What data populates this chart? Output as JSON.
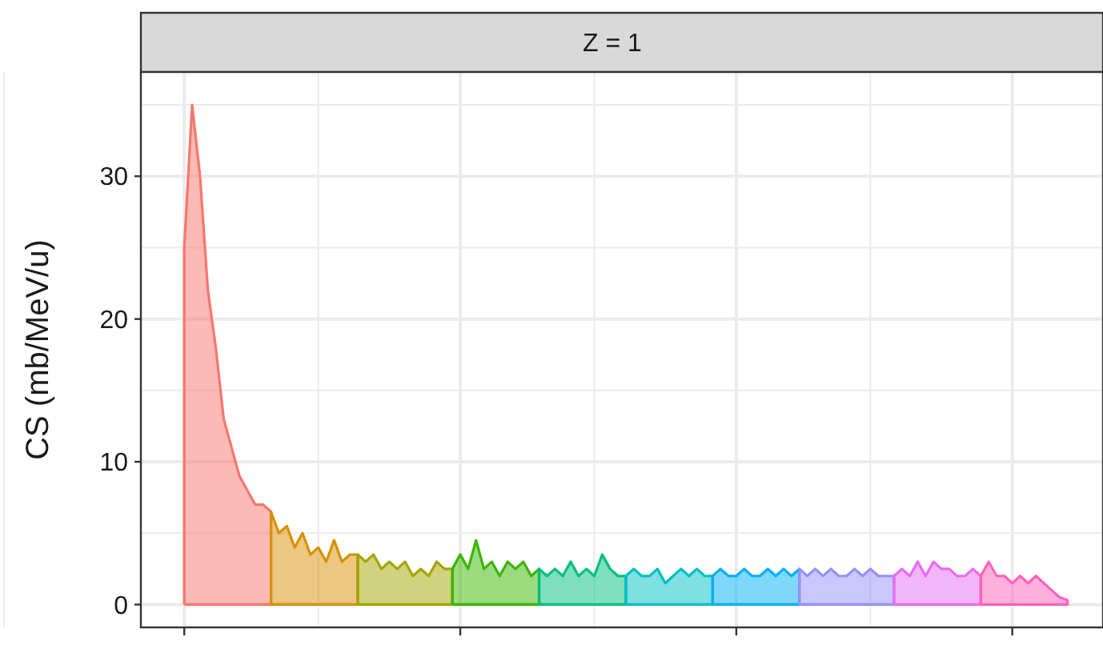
{
  "chart_data": {
    "type": "area",
    "title": "Z = 1",
    "ylabel": "CS (mb/MeV/u)",
    "categories": [
      null,
      null,
      null,
      null,
      null,
      null,
      null,
      null,
      null,
      null,
      null,
      null,
      null,
      null,
      null,
      null,
      null,
      null,
      null,
      null,
      null,
      null,
      null,
      null,
      null,
      null,
      null,
      null,
      null,
      null,
      null,
      null,
      null,
      null,
      null,
      null,
      null,
      null,
      null,
      null,
      null,
      null,
      null,
      null,
      null,
      null,
      null,
      null,
      null,
      null,
      null,
      null,
      null,
      null,
      null,
      null,
      null,
      null,
      null,
      null,
      null,
      null,
      null,
      null,
      null,
      null,
      null,
      null,
      null,
      null,
      null,
      null,
      null,
      null,
      null,
      null,
      null,
      null,
      null,
      null,
      null,
      null,
      null,
      null,
      null,
      null,
      null,
      null,
      null,
      null,
      null,
      null,
      null,
      null,
      null,
      null,
      null,
      null,
      null,
      null,
      null,
      null,
      null,
      null,
      null,
      null,
      null,
      null,
      null,
      null,
      null,
      null,
      null,
      null,
      null,
      null,
      null,
      null,
      null,
      null,
      null,
      null
    ],
    "ylim": [
      -1.6,
      37.3
    ],
    "yticks": [
      0,
      10,
      20,
      30
    ],
    "grid": true,
    "tick_labels": "y",
    "series": [
      {
        "color": "#f8766d",
        "values": [
          null,
          null,
          null,
          null,
          null,
          25,
          35,
          30,
          22,
          18,
          13,
          11,
          9,
          8,
          7,
          7,
          6.5,
          null,
          null,
          null,
          null,
          null,
          null,
          null,
          null,
          null,
          null,
          null,
          null,
          null,
          null,
          null,
          null,
          null,
          null,
          null,
          null,
          null,
          null,
          null,
          null,
          null,
          null,
          null,
          null,
          null,
          null,
          null,
          null,
          null,
          null,
          null,
          null,
          null,
          null,
          null,
          null,
          null,
          null,
          null,
          null,
          null,
          null,
          null,
          null,
          null,
          null,
          null,
          null,
          null,
          null,
          null,
          null,
          null,
          null,
          null,
          null,
          null,
          null,
          null,
          null,
          null,
          null,
          null,
          null,
          null,
          null,
          null,
          null,
          null,
          null,
          null,
          null,
          null,
          null,
          null,
          null,
          null,
          null,
          null,
          null,
          null,
          null,
          null,
          null,
          null,
          null,
          null,
          null,
          null,
          null,
          null,
          null,
          null,
          null,
          null,
          null,
          null,
          null,
          null,
          null,
          null
        ]
      },
      {
        "color": "#d89000",
        "values": [
          null,
          null,
          null,
          null,
          null,
          null,
          null,
          null,
          null,
          null,
          null,
          null,
          null,
          null,
          null,
          null,
          6.5,
          5,
          5.5,
          4,
          5,
          3.5,
          4,
          3,
          4.5,
          3,
          3.5,
          3.5,
          null,
          null,
          null,
          null,
          null,
          null,
          null,
          null,
          null,
          null,
          null,
          null,
          null,
          null,
          null,
          null,
          null,
          null,
          null,
          null,
          null,
          null,
          null,
          null,
          null,
          null,
          null,
          null,
          null,
          null,
          null,
          null,
          null,
          null,
          null,
          null,
          null,
          null,
          null,
          null,
          null,
          null,
          null,
          null,
          null,
          null,
          null,
          null,
          null,
          null,
          null,
          null,
          null,
          null,
          null,
          null,
          null,
          null,
          null,
          null,
          null,
          null,
          null,
          null,
          null,
          null,
          null,
          null,
          null,
          null,
          null,
          null,
          null,
          null,
          null,
          null,
          null,
          null,
          null,
          null,
          null,
          null,
          null,
          null,
          null,
          null,
          null,
          null,
          null,
          null,
          null,
          null,
          null,
          null
        ]
      },
      {
        "color": "#a3a500",
        "values": [
          null,
          null,
          null,
          null,
          null,
          null,
          null,
          null,
          null,
          null,
          null,
          null,
          null,
          null,
          null,
          null,
          null,
          null,
          null,
          null,
          null,
          null,
          null,
          null,
          null,
          null,
          null,
          3.5,
          3,
          3.5,
          2.5,
          3,
          2.5,
          3,
          2,
          2.5,
          2,
          3,
          2.5,
          2.5,
          null,
          null,
          null,
          null,
          null,
          null,
          null,
          null,
          null,
          null,
          null,
          null,
          null,
          null,
          null,
          null,
          null,
          null,
          null,
          null,
          null,
          null,
          null,
          null,
          null,
          null,
          null,
          null,
          null,
          null,
          null,
          null,
          null,
          null,
          null,
          null,
          null,
          null,
          null,
          null,
          null,
          null,
          null,
          null,
          null,
          null,
          null,
          null,
          null,
          null,
          null,
          null,
          null,
          null,
          null,
          null,
          null,
          null,
          null,
          null,
          null,
          null,
          null,
          null,
          null,
          null,
          null,
          null,
          null,
          null,
          null,
          null,
          null,
          null,
          null,
          null,
          null,
          null,
          null,
          null,
          null,
          null
        ]
      },
      {
        "color": "#39b600",
        "values": [
          null,
          null,
          null,
          null,
          null,
          null,
          null,
          null,
          null,
          null,
          null,
          null,
          null,
          null,
          null,
          null,
          null,
          null,
          null,
          null,
          null,
          null,
          null,
          null,
          null,
          null,
          null,
          null,
          null,
          null,
          null,
          null,
          null,
          null,
          null,
          null,
          null,
          null,
          null,
          2.5,
          3.5,
          2.5,
          4.5,
          2.5,
          3,
          2,
          3,
          2.5,
          3,
          2,
          2.5,
          null,
          null,
          null,
          null,
          null,
          null,
          null,
          null,
          null,
          null,
          null,
          null,
          null,
          null,
          null,
          null,
          null,
          null,
          null,
          null,
          null,
          null,
          null,
          null,
          null,
          null,
          null,
          null,
          null,
          null,
          null,
          null,
          null,
          null,
          null,
          null,
          null,
          null,
          null,
          null,
          null,
          null,
          null,
          null,
          null,
          null,
          null,
          null,
          null,
          null,
          null,
          null,
          null,
          null,
          null,
          null,
          null,
          null,
          null,
          null,
          null,
          null,
          null,
          null,
          null,
          null,
          null,
          null,
          null,
          null,
          null
        ]
      },
      {
        "color": "#00bf7d",
        "values": [
          null,
          null,
          null,
          null,
          null,
          null,
          null,
          null,
          null,
          null,
          null,
          null,
          null,
          null,
          null,
          null,
          null,
          null,
          null,
          null,
          null,
          null,
          null,
          null,
          null,
          null,
          null,
          null,
          null,
          null,
          null,
          null,
          null,
          null,
          null,
          null,
          null,
          null,
          null,
          null,
          null,
          null,
          null,
          null,
          null,
          null,
          null,
          null,
          null,
          null,
          2.5,
          2,
          2.5,
          2,
          3,
          2,
          2.5,
          2,
          3.5,
          2.5,
          2,
          2,
          null,
          null,
          null,
          null,
          null,
          null,
          null,
          null,
          null,
          null,
          null,
          null,
          null,
          null,
          null,
          null,
          null,
          null,
          null,
          null,
          null,
          null,
          null,
          null,
          null,
          null,
          null,
          null,
          null,
          null,
          null,
          null,
          null,
          null,
          null,
          null,
          null,
          null,
          null,
          null,
          null,
          null,
          null,
          null,
          null,
          null,
          null,
          null,
          null,
          null,
          null,
          null,
          null,
          null,
          null,
          null,
          null,
          null,
          null,
          null
        ]
      },
      {
        "color": "#00bfc4",
        "values": [
          null,
          null,
          null,
          null,
          null,
          null,
          null,
          null,
          null,
          null,
          null,
          null,
          null,
          null,
          null,
          null,
          null,
          null,
          null,
          null,
          null,
          null,
          null,
          null,
          null,
          null,
          null,
          null,
          null,
          null,
          null,
          null,
          null,
          null,
          null,
          null,
          null,
          null,
          null,
          null,
          null,
          null,
          null,
          null,
          null,
          null,
          null,
          null,
          null,
          null,
          null,
          null,
          null,
          null,
          null,
          null,
          null,
          null,
          null,
          null,
          null,
          2,
          2.5,
          2,
          2,
          2.5,
          1.5,
          2,
          2.5,
          2,
          2.5,
          2,
          2,
          null,
          null,
          null,
          null,
          null,
          null,
          null,
          null,
          null,
          null,
          null,
          null,
          null,
          null,
          null,
          null,
          null,
          null,
          null,
          null,
          null,
          null,
          null,
          null,
          null,
          null,
          null,
          null,
          null,
          null,
          null,
          null,
          null,
          null,
          null,
          null,
          null,
          null,
          null,
          null,
          null,
          null,
          null,
          null,
          null,
          null,
          null,
          null,
          null
        ]
      },
      {
        "color": "#00b0f6",
        "values": [
          null,
          null,
          null,
          null,
          null,
          null,
          null,
          null,
          null,
          null,
          null,
          null,
          null,
          null,
          null,
          null,
          null,
          null,
          null,
          null,
          null,
          null,
          null,
          null,
          null,
          null,
          null,
          null,
          null,
          null,
          null,
          null,
          null,
          null,
          null,
          null,
          null,
          null,
          null,
          null,
          null,
          null,
          null,
          null,
          null,
          null,
          null,
          null,
          null,
          null,
          null,
          null,
          null,
          null,
          null,
          null,
          null,
          null,
          null,
          null,
          null,
          null,
          null,
          null,
          null,
          null,
          null,
          null,
          null,
          null,
          null,
          null,
          2,
          2.5,
          2,
          2,
          2.5,
          2,
          2,
          2.5,
          2,
          2.5,
          2,
          2.5,
          null,
          null,
          null,
          null,
          null,
          null,
          null,
          null,
          null,
          null,
          null,
          null,
          null,
          null,
          null,
          null,
          null,
          null,
          null,
          null,
          null,
          null,
          null,
          null,
          null,
          null,
          null,
          null,
          null,
          null,
          null,
          null,
          null,
          null,
          null,
          null,
          null,
          null
        ]
      },
      {
        "color": "#9590ff",
        "values": [
          null,
          null,
          null,
          null,
          null,
          null,
          null,
          null,
          null,
          null,
          null,
          null,
          null,
          null,
          null,
          null,
          null,
          null,
          null,
          null,
          null,
          null,
          null,
          null,
          null,
          null,
          null,
          null,
          null,
          null,
          null,
          null,
          null,
          null,
          null,
          null,
          null,
          null,
          null,
          null,
          null,
          null,
          null,
          null,
          null,
          null,
          null,
          null,
          null,
          null,
          null,
          null,
          null,
          null,
          null,
          null,
          null,
          null,
          null,
          null,
          null,
          null,
          null,
          null,
          null,
          null,
          null,
          null,
          null,
          null,
          null,
          null,
          null,
          null,
          null,
          null,
          null,
          null,
          null,
          null,
          null,
          null,
          null,
          2.5,
          2,
          2.5,
          2,
          2.5,
          2,
          2,
          2.5,
          2,
          2.5,
          2,
          2,
          2,
          null,
          null,
          null,
          null,
          null,
          null,
          null,
          null,
          null,
          null,
          null,
          null,
          null,
          null,
          null,
          null,
          null,
          null,
          null,
          null,
          null,
          null,
          null,
          null,
          null,
          null
        ]
      },
      {
        "color": "#e76bf3",
        "values": [
          null,
          null,
          null,
          null,
          null,
          null,
          null,
          null,
          null,
          null,
          null,
          null,
          null,
          null,
          null,
          null,
          null,
          null,
          null,
          null,
          null,
          null,
          null,
          null,
          null,
          null,
          null,
          null,
          null,
          null,
          null,
          null,
          null,
          null,
          null,
          null,
          null,
          null,
          null,
          null,
          null,
          null,
          null,
          null,
          null,
          null,
          null,
          null,
          null,
          null,
          null,
          null,
          null,
          null,
          null,
          null,
          null,
          null,
          null,
          null,
          null,
          null,
          null,
          null,
          null,
          null,
          null,
          null,
          null,
          null,
          null,
          null,
          null,
          null,
          null,
          null,
          null,
          null,
          null,
          null,
          null,
          null,
          null,
          null,
          null,
          null,
          null,
          null,
          null,
          null,
          null,
          null,
          null,
          null,
          null,
          2,
          2.5,
          2,
          3,
          2,
          3,
          2.5,
          2.5,
          2,
          2,
          2.5,
          2,
          null,
          null,
          null,
          null,
          null,
          null,
          null,
          null,
          null,
          null,
          null,
          null,
          null,
          null,
          null
        ]
      },
      {
        "color": "#ff62bc",
        "values": [
          null,
          null,
          null,
          null,
          null,
          null,
          null,
          null,
          null,
          null,
          null,
          null,
          null,
          null,
          null,
          null,
          null,
          null,
          null,
          null,
          null,
          null,
          null,
          null,
          null,
          null,
          null,
          null,
          null,
          null,
          null,
          null,
          null,
          null,
          null,
          null,
          null,
          null,
          null,
          null,
          null,
          null,
          null,
          null,
          null,
          null,
          null,
          null,
          null,
          null,
          null,
          null,
          null,
          null,
          null,
          null,
          null,
          null,
          null,
          null,
          null,
          null,
          null,
          null,
          null,
          null,
          null,
          null,
          null,
          null,
          null,
          null,
          null,
          null,
          null,
          null,
          null,
          null,
          null,
          null,
          null,
          null,
          null,
          null,
          null,
          null,
          null,
          null,
          null,
          null,
          null,
          null,
          null,
          null,
          null,
          null,
          null,
          null,
          null,
          null,
          null,
          null,
          null,
          null,
          null,
          null,
          2,
          3,
          2,
          2,
          1.5,
          2,
          1.5,
          2,
          1.5,
          1,
          0.5,
          0.3,
          null,
          null,
          null,
          null
        ]
      }
    ]
  }
}
